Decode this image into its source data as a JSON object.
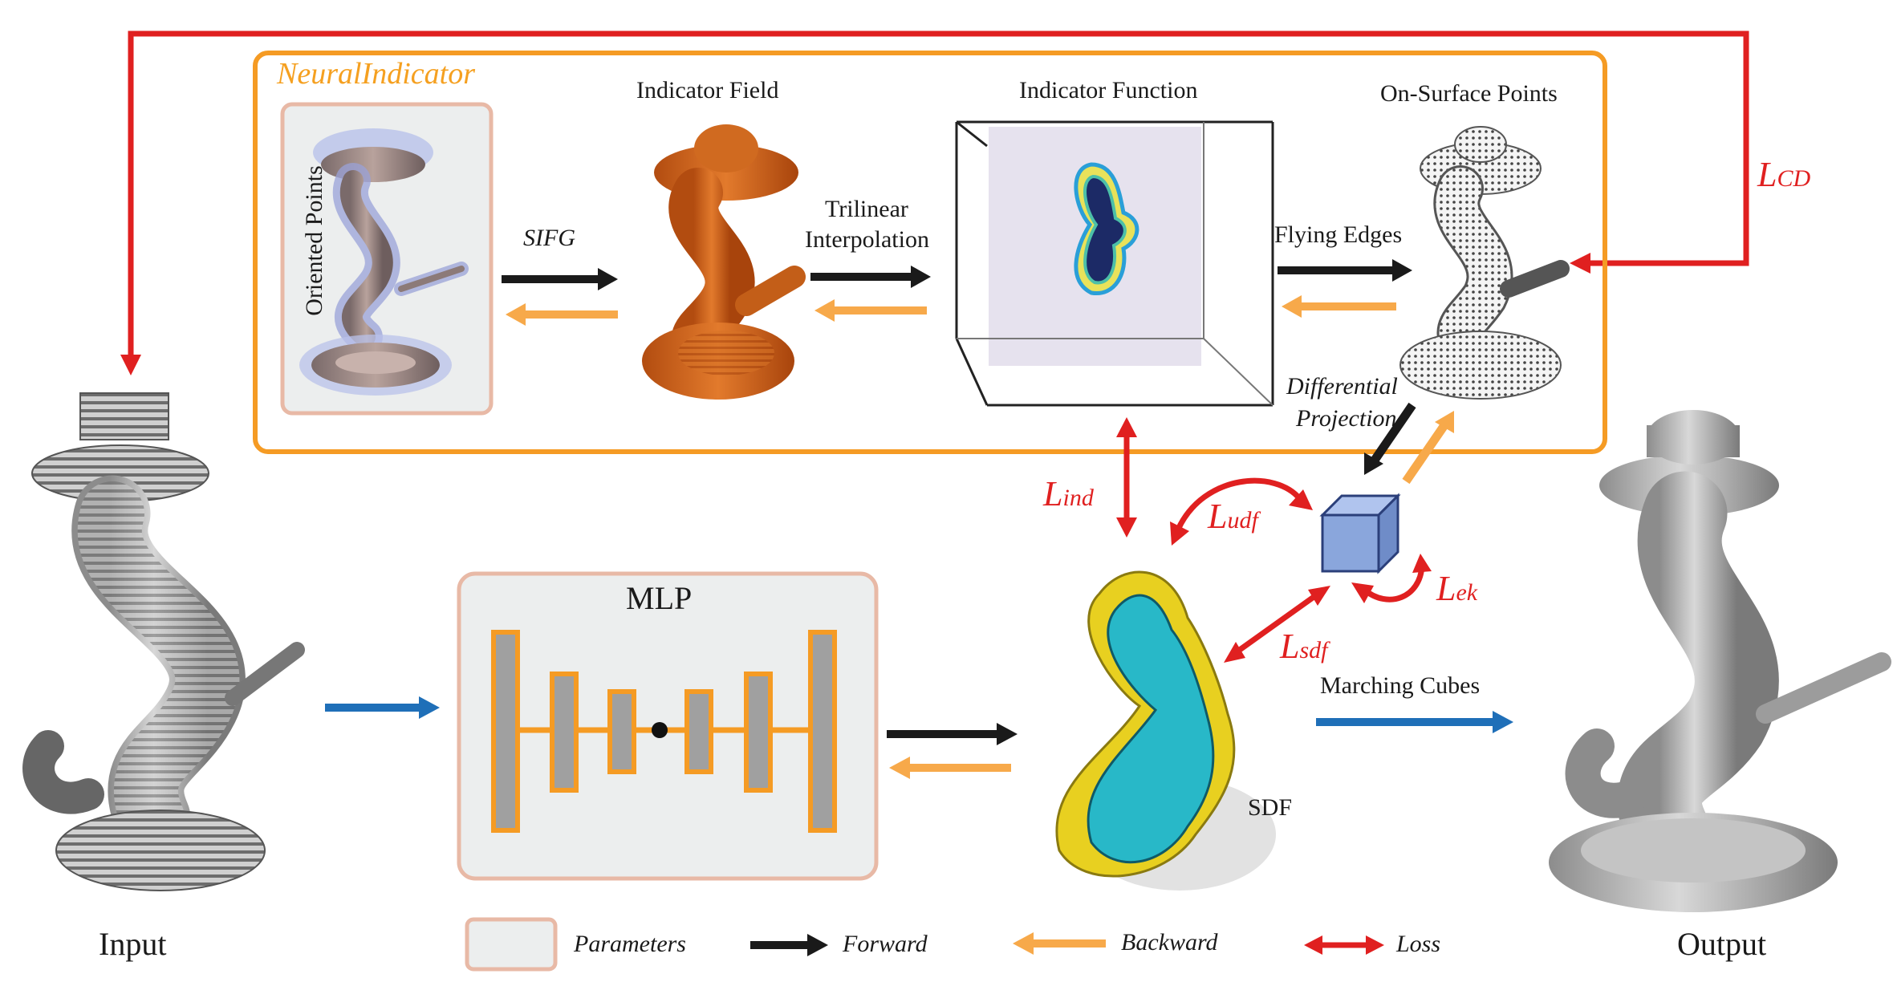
{
  "module_title": "NeuralIndicator",
  "labels": {
    "oriented_points": "Oriented Points",
    "indicator_field": "Indicator Field",
    "indicator_function": "Indicator Function",
    "on_surface_points": "On-Surface Points",
    "sifg": "SIFG",
    "trilinear_1": "Trilinear",
    "trilinear_2": "Interpolation",
    "flying_edges": "Flying Edges",
    "differential_1": "Differential",
    "differential_2": "Projection",
    "mlp": "MLP",
    "sdf": "SDF",
    "marching_cubes": "Marching Cubes",
    "input": "Input",
    "output": "Output"
  },
  "losses": {
    "cd": {
      "main": "L",
      "sub": "CD"
    },
    "ind": {
      "main": "L",
      "sub": "ind"
    },
    "udf": {
      "main": "L",
      "sub": "udf"
    },
    "ek": {
      "main": "L",
      "sub": "ek"
    },
    "sdf": {
      "main": "L",
      "sub": "sdf"
    }
  },
  "legend": {
    "parameters": "Parameters",
    "forward": "Forward",
    "backward": "Backward",
    "loss": "Loss"
  },
  "colors": {
    "forward": "#1a1a1a",
    "backward": "#f7a94a",
    "loss": "#e02020",
    "marching": "#1f6fb8",
    "module_border": "#f59b24",
    "param_border": "#e8b9a6",
    "param_fill": "#eceeee",
    "indicator_field": "#d8661c",
    "sdf_core": "#28b8c8",
    "sdf_shell": "#e8d020",
    "mesh": "#b0b0b0"
  }
}
